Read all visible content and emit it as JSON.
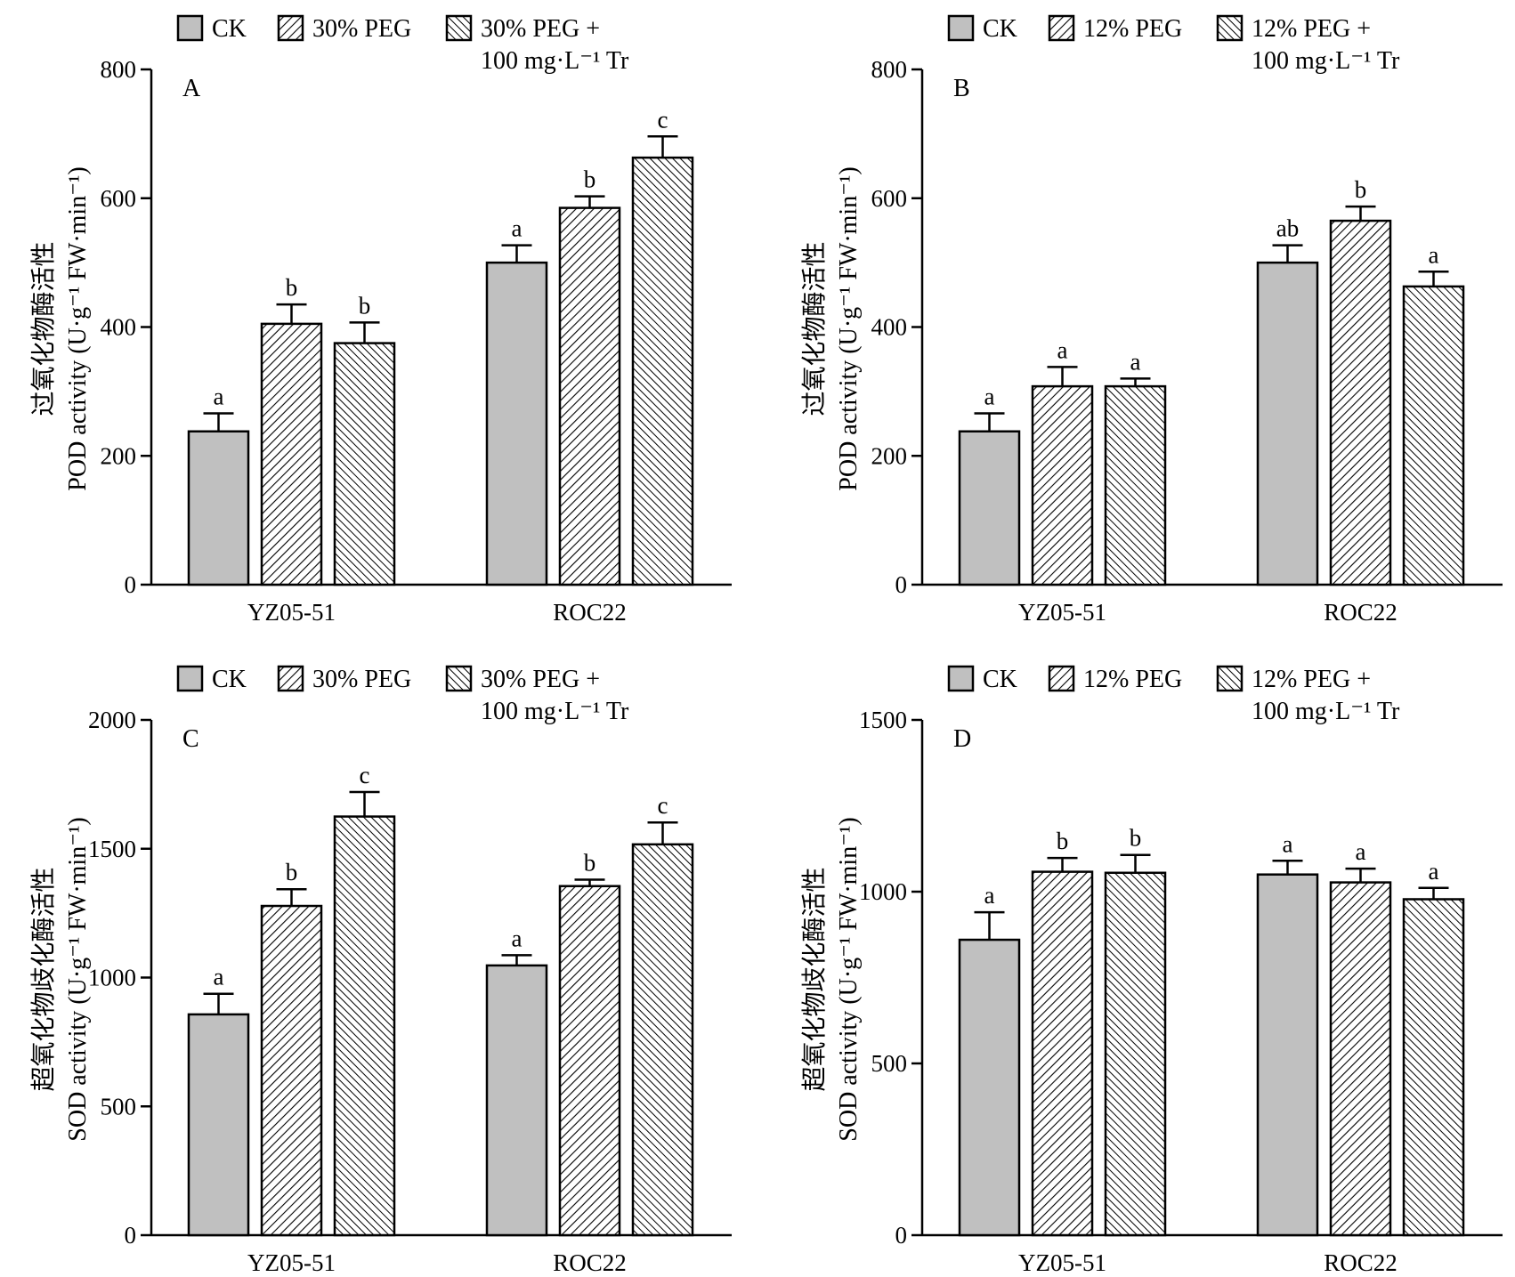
{
  "colors": {
    "ck_fill": "#c0c0c0",
    "bar_stroke": "#000000",
    "axis": "#000000"
  },
  "chart_data": [
    {
      "panel_label": "A",
      "type": "bar",
      "categories": [
        "YZ05-51",
        "ROC22"
      ],
      "ylim": [
        0,
        800
      ],
      "yticks": [
        "0",
        "200",
        "400",
        "600",
        "800"
      ],
      "ylabel_cn": "过氧化物酶活性",
      "ylabel_en": "POD activity (U·g⁻¹ FW·min⁻¹)",
      "legend": [
        "CK",
        "30% PEG",
        "30% PEG +",
        "100 mg·L⁻¹ Tr"
      ],
      "series": [
        {
          "name": "CK",
          "pattern": "solid",
          "values": [
            238,
            500
          ],
          "errors": [
            28,
            27
          ],
          "letters": [
            "a",
            "a"
          ]
        },
        {
          "name": "30% PEG",
          "pattern": "hatch-right",
          "values": [
            405,
            585
          ],
          "errors": [
            30,
            18
          ],
          "letters": [
            "b",
            "b"
          ]
        },
        {
          "name": "30% PEG + 100 mg·L⁻¹ Tr",
          "pattern": "hatch-left",
          "values": [
            375,
            663
          ],
          "errors": [
            32,
            33
          ],
          "letters": [
            "b",
            "c"
          ]
        }
      ]
    },
    {
      "panel_label": "B",
      "type": "bar",
      "categories": [
        "YZ05-51",
        "ROC22"
      ],
      "ylim": [
        0,
        800
      ],
      "yticks": [
        "0",
        "200",
        "400",
        "600",
        "800"
      ],
      "ylabel_cn": "过氧化物酶活性",
      "ylabel_en": "POD activity (U·g⁻¹ FW·min⁻¹)",
      "legend": [
        "CK",
        "12% PEG",
        "12% PEG +",
        "100 mg·L⁻¹ Tr"
      ],
      "series": [
        {
          "name": "CK",
          "pattern": "solid",
          "values": [
            238,
            500
          ],
          "errors": [
            28,
            27
          ],
          "letters": [
            "a",
            "ab"
          ]
        },
        {
          "name": "12% PEG",
          "pattern": "hatch-right",
          "values": [
            308,
            565
          ],
          "errors": [
            30,
            22
          ],
          "letters": [
            "a",
            "b"
          ]
        },
        {
          "name": "12% PEG + 100 mg·L⁻¹ Tr",
          "pattern": "hatch-left",
          "values": [
            308,
            463
          ],
          "errors": [
            12,
            23
          ],
          "letters": [
            "a",
            "a"
          ]
        }
      ]
    },
    {
      "panel_label": "C",
      "type": "bar",
      "categories": [
        "YZ05-51",
        "ROC22"
      ],
      "ylim": [
        0,
        2000
      ],
      "yticks": [
        "0",
        "500",
        "1000",
        "1500",
        "2000"
      ],
      "ylabel_cn": "超氧化物歧化酶活性",
      "ylabel_en": "SOD activity (U·g⁻¹ FW·min⁻¹)",
      "legend": [
        "CK",
        "30% PEG",
        "30% PEG +",
        "100 mg·L⁻¹ Tr"
      ],
      "series": [
        {
          "name": "CK",
          "pattern": "solid",
          "values": [
            857,
            1047
          ],
          "errors": [
            80,
            40
          ],
          "letters": [
            "a",
            "a"
          ]
        },
        {
          "name": "30% PEG",
          "pattern": "hatch-right",
          "values": [
            1278,
            1355
          ],
          "errors": [
            65,
            25
          ],
          "letters": [
            "b",
            "b"
          ]
        },
        {
          "name": "30% PEG + 100 mg·L⁻¹ Tr",
          "pattern": "hatch-left",
          "values": [
            1625,
            1517
          ],
          "errors": [
            95,
            85
          ],
          "letters": [
            "c",
            "c"
          ]
        }
      ]
    },
    {
      "panel_label": "D",
      "type": "bar",
      "categories": [
        "YZ05-51",
        "ROC22"
      ],
      "ylim": [
        0,
        1500
      ],
      "yticks": [
        "0",
        "500",
        "1000",
        "1500"
      ],
      "ylabel_cn": "超氧化物歧化酶活性",
      "ylabel_en": "SOD activity (U·g⁻¹ FW·min⁻¹)",
      "legend": [
        "CK",
        "12% PEG",
        "12% PEG +",
        "100 mg·L⁻¹ Tr"
      ],
      "series": [
        {
          "name": "CK",
          "pattern": "solid",
          "values": [
            860,
            1050
          ],
          "errors": [
            80,
            40
          ],
          "letters": [
            "a",
            "a"
          ]
        },
        {
          "name": "12% PEG",
          "pattern": "hatch-right",
          "values": [
            1058,
            1027
          ],
          "errors": [
            40,
            40
          ],
          "letters": [
            "b",
            "a"
          ]
        },
        {
          "name": "12% PEG + 100 mg·L⁻¹ Tr",
          "pattern": "hatch-left",
          "values": [
            1055,
            978
          ],
          "errors": [
            52,
            33
          ],
          "letters": [
            "b",
            "a"
          ]
        }
      ]
    }
  ]
}
